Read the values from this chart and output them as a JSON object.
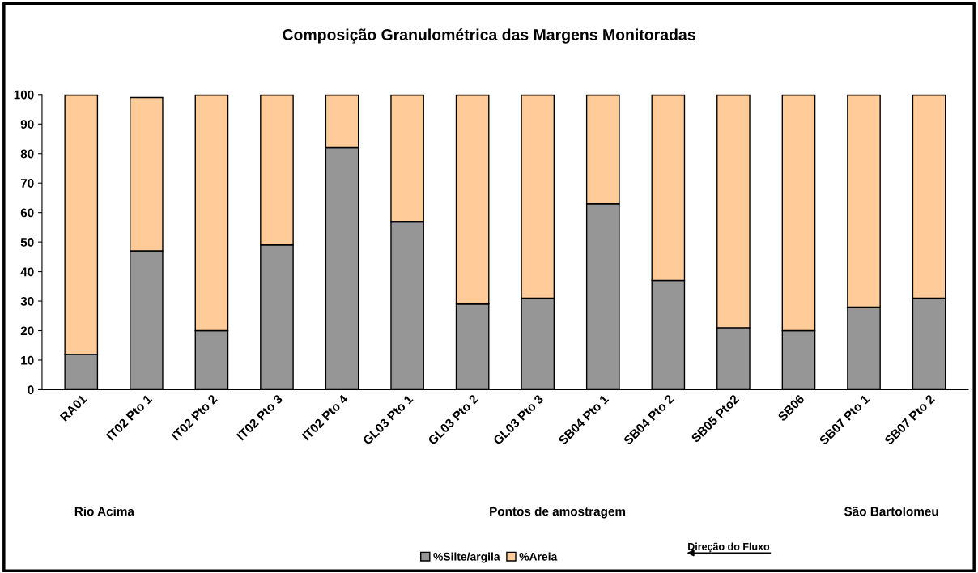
{
  "chart_data": {
    "type": "bar",
    "title": "Composição Granulométrica das Margens Monitoradas",
    "xlabel": "Pontos de amostragem",
    "categories": [
      "RA01",
      "IT02 Pto 1",
      "IT02 Pto 2",
      "IT02 Pto 3",
      "IT02 Pto 4",
      "GL03 Pto 1",
      "GL03 Pto 2",
      "GL03 Pto 3",
      "SB04 Pto 1",
      "SB04 Pto 2",
      "SB05 Pto2",
      "SB06",
      "SB07 Pto 1",
      "SB07 Pto 2"
    ],
    "stacked": true,
    "series": [
      {
        "name": "%Silte/argila",
        "color": "#969696",
        "values": [
          12,
          47,
          20,
          49,
          82,
          57,
          29,
          31,
          63,
          37,
          21,
          20,
          28,
          31
        ]
      },
      {
        "name": "%Areia",
        "color": "#ffcc99",
        "values": [
          88,
          52,
          80,
          51,
          18,
          43,
          71,
          69,
          37,
          63,
          79,
          80,
          72,
          69
        ]
      }
    ],
    "ylim": [
      0,
      100
    ],
    "yticks": [
      0,
      10,
      20,
      30,
      40,
      50,
      60,
      70,
      80,
      90,
      100
    ],
    "grid": false,
    "legend": "bottom",
    "annotations": [
      "Rio Acima",
      "São Bartolomeu",
      "Direção do Fluxo"
    ]
  }
}
